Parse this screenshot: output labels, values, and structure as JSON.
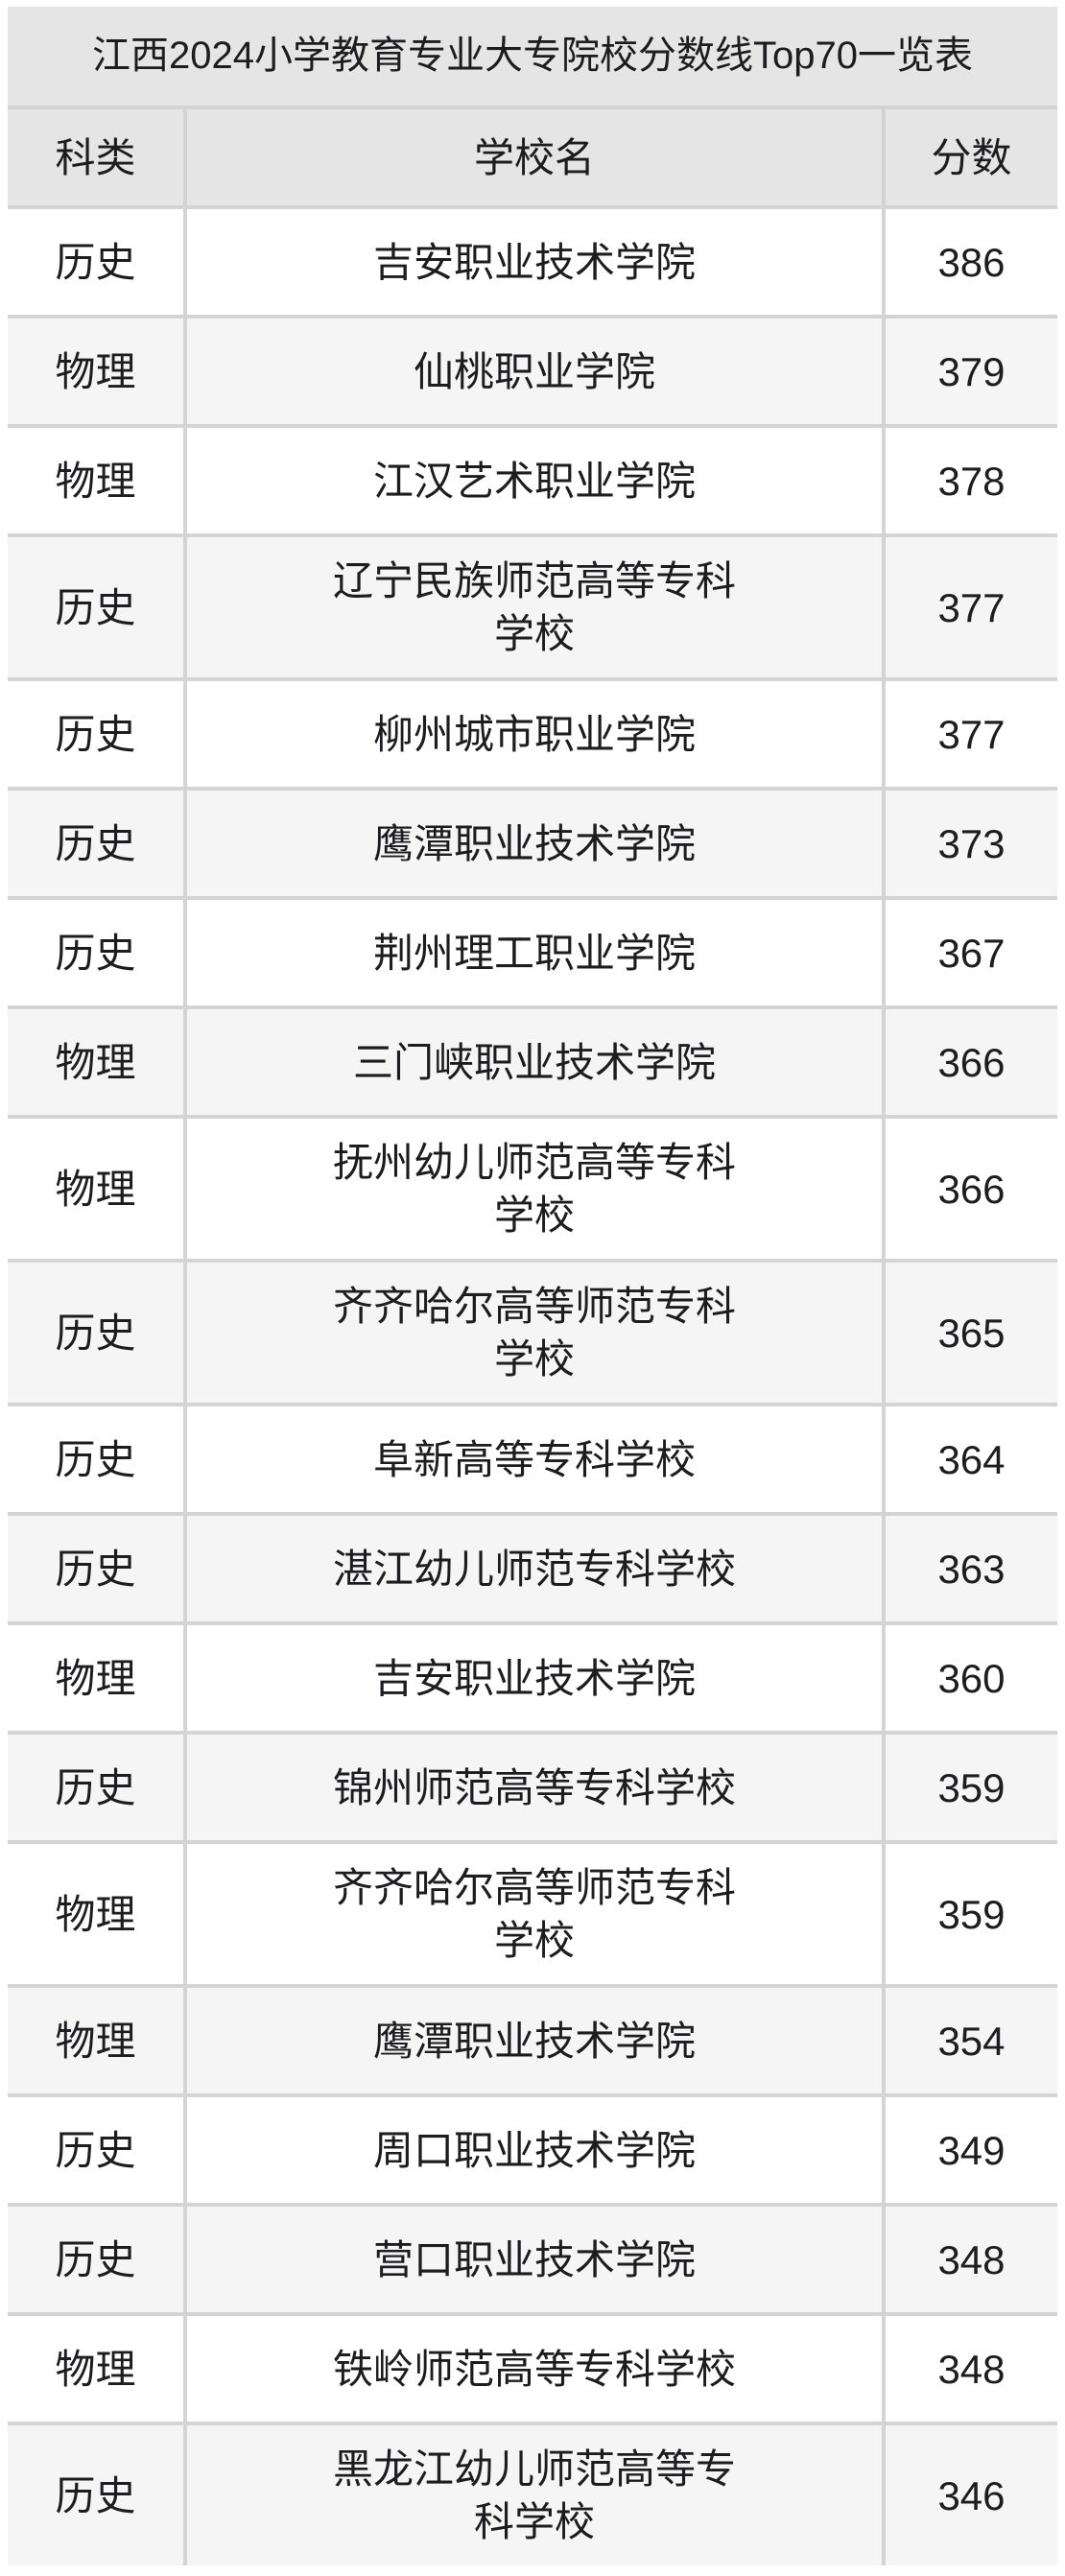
{
  "title": "江西2024小学教育专业大专院校分数线Top70一览表",
  "chart_data": {
    "type": "table",
    "title": "江西2024小学教育专业大专院校分数线Top70一览表",
    "columns": [
      "科类",
      "学校名",
      "分数"
    ],
    "rows": [
      [
        "历史",
        "吉安职业技术学院",
        386
      ],
      [
        "物理",
        "仙桃职业学院",
        379
      ],
      [
        "物理",
        "江汉艺术职业学院",
        378
      ],
      [
        "历史",
        "辽宁民族师范高等专科学校",
        377
      ],
      [
        "历史",
        "柳州城市职业学院",
        377
      ],
      [
        "历史",
        "鹰潭职业技术学院",
        373
      ],
      [
        "历史",
        "荆州理工职业学院",
        367
      ],
      [
        "物理",
        "三门峡职业技术学院",
        366
      ],
      [
        "物理",
        "抚州幼儿师范高等专科学校",
        366
      ],
      [
        "历史",
        "齐齐哈尔高等师范专科学校",
        365
      ],
      [
        "历史",
        "阜新高等专科学校",
        364
      ],
      [
        "历史",
        "湛江幼儿师范专科学校",
        363
      ],
      [
        "物理",
        "吉安职业技术学院",
        360
      ],
      [
        "历史",
        "锦州师范高等专科学校",
        359
      ],
      [
        "物理",
        "齐齐哈尔高等师范专科学校",
        359
      ],
      [
        "物理",
        "鹰潭职业技术学院",
        354
      ],
      [
        "历史",
        "周口职业技术学院",
        349
      ],
      [
        "历史",
        "营口职业技术学院",
        348
      ],
      [
        "物理",
        "铁岭师范高等专科学校",
        348
      ],
      [
        "历史",
        "黑龙江幼儿师范高等专科学校",
        346
      ]
    ],
    "layout": {
      "legend": "none",
      "grid": "light-gray cell gaps",
      "alt_row_shading": true
    }
  },
  "colors": {
    "header_bg": "#e5e5e5",
    "row_bg": "#ffffff",
    "row_alt_bg": "#f5f5f5",
    "grid_line": "#d4d4d4",
    "text": "#1d1d1f",
    "page_bg": "#ffffff"
  }
}
